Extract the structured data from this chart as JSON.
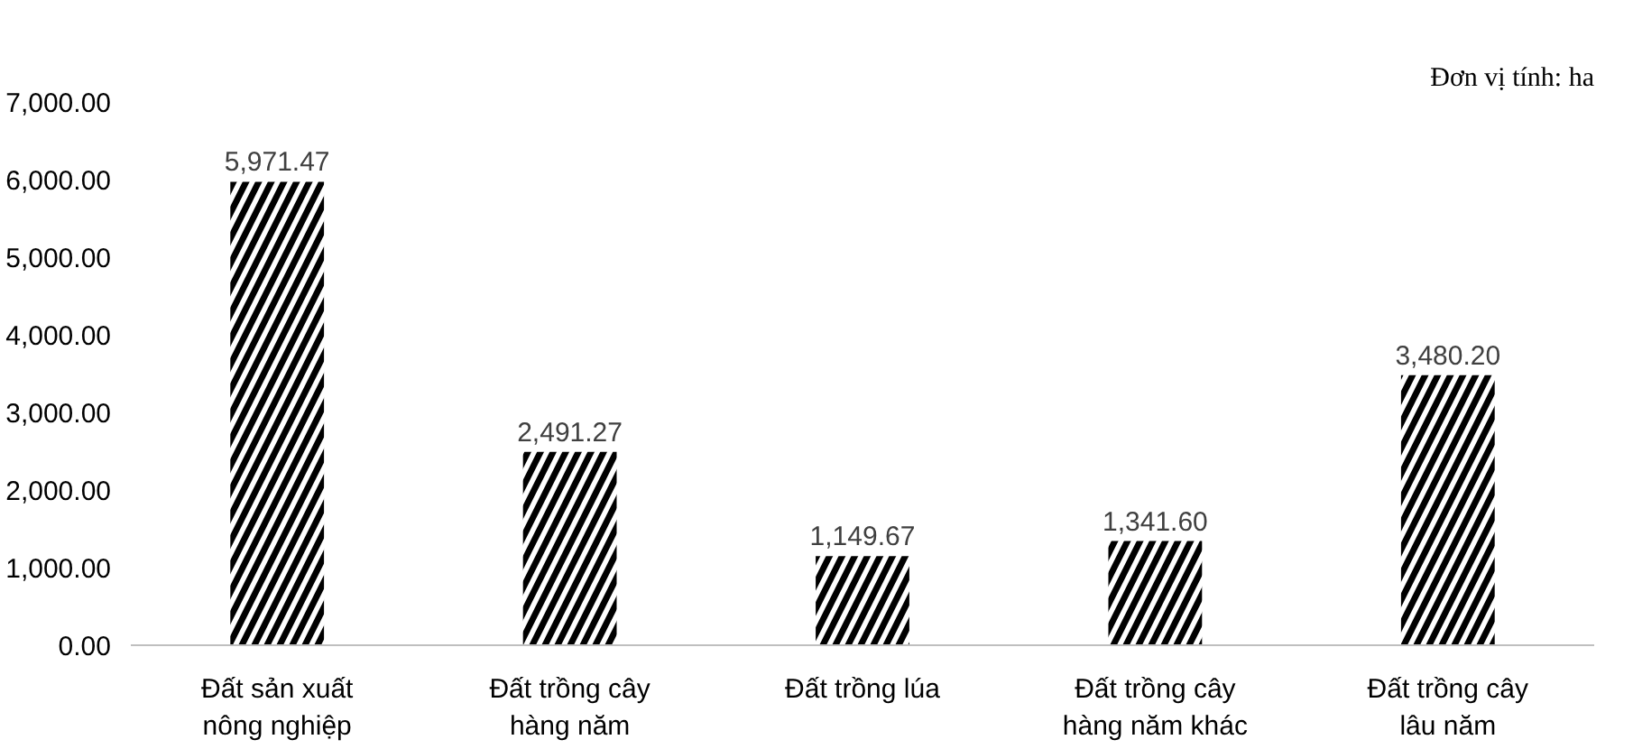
{
  "chart_data": {
    "type": "bar",
    "categories": [
      "Đất sản xuất nông nghiệp",
      "Đất trồng cây hàng năm",
      "Đất trồng lúa",
      "Đất trồng cây hàng năm khác",
      "Đất trồng cây lâu năm"
    ],
    "values": [
      5971.47,
      2491.27,
      1149.67,
      1341.6,
      3480.2
    ],
    "color": "#000000",
    "ylim": [
      0,
      7000
    ],
    "yticks": [
      {
        "value": 0,
        "label": "0.00"
      },
      {
        "value": 1000,
        "label": "1,000.00"
      },
      {
        "value": 2000,
        "label": "2,000.00"
      },
      {
        "value": 3000,
        "label": "3,000.00"
      },
      {
        "value": 4000,
        "label": "4,000.00"
      },
      {
        "value": 5000,
        "label": "5,000.00"
      },
      {
        "value": 6000,
        "label": "6,000.00"
      },
      {
        "value": 7000,
        "label": "7,000.00"
      }
    ],
    "value_labels": [
      "5,971.47",
      "2,491.27",
      "1,149.67",
      "1,341.60",
      "3,480.20"
    ],
    "grid": false,
    "annotations": [
      "Đơn vị tính: ha"
    ]
  }
}
